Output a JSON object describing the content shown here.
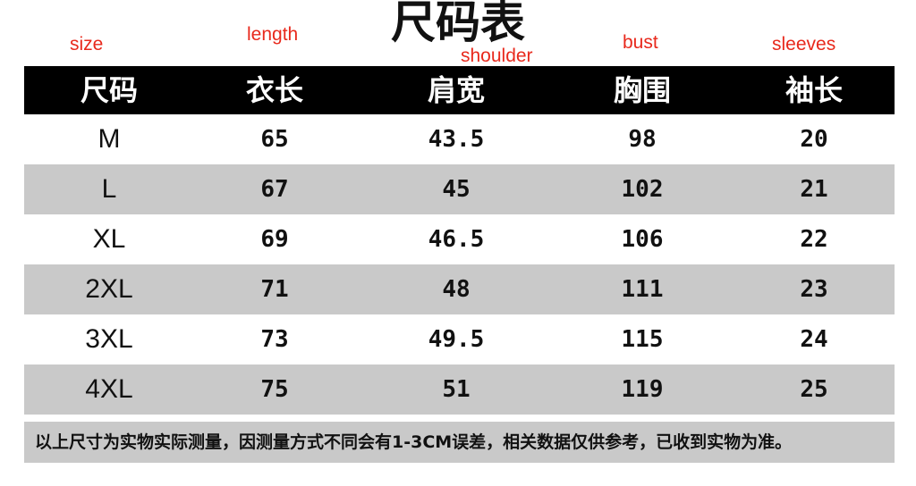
{
  "title": "尺码表",
  "annotations": {
    "size": "size",
    "length": "length",
    "shoulder": "shoulder",
    "bust": "bust",
    "sleeves": "sleeves"
  },
  "columns": [
    "尺码",
    "衣长",
    "肩宽",
    "胸围",
    "袖长"
  ],
  "rows": [
    [
      "M",
      "65",
      "43.5",
      "98",
      "20"
    ],
    [
      "L",
      "67",
      "45",
      "102",
      "21"
    ],
    [
      "XL",
      "69",
      "46.5",
      "106",
      "22"
    ],
    [
      "2XL",
      "71",
      "48",
      "111",
      "23"
    ],
    [
      "3XL",
      "73",
      "49.5",
      "115",
      "24"
    ],
    [
      "4XL",
      "75",
      "51",
      "119",
      "25"
    ]
  ],
  "footer": "以上尺寸为实物实际测量，因测量方式不同会有1-3CM误差，相关数据仅供参考，已收到实物为准。",
  "colors": {
    "header_bg": "#000000",
    "stripe": "#c9c9c9",
    "annotation": "#e8291c"
  }
}
